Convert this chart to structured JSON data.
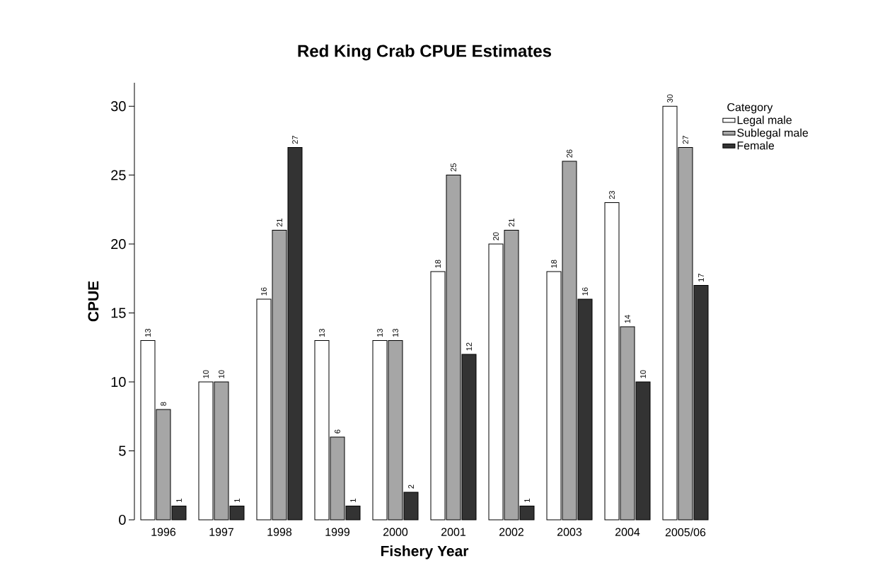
{
  "chart_data": {
    "type": "bar",
    "title": "Red King Crab CPUE Estimates",
    "xlabel": "Fishery Year",
    "ylabel": "CPUE",
    "legend_title": "Category",
    "categories": [
      "1996",
      "1997",
      "1998",
      "1999",
      "2000",
      "2001",
      "2002",
      "2003",
      "2004",
      "2005/06"
    ],
    "series": [
      {
        "name": "Legal male",
        "color": "#ffffff",
        "values": [
          13,
          10,
          16,
          13,
          13,
          18,
          20,
          18,
          23,
          30
        ]
      },
      {
        "name": "Sublegal male",
        "color": "#a6a6a6",
        "values": [
          8,
          10,
          21,
          6,
          13,
          25,
          21,
          26,
          14,
          27
        ]
      },
      {
        "name": "Female",
        "color": "#333333",
        "values": [
          1,
          1,
          27,
          1,
          2,
          12,
          1,
          16,
          10,
          17
        ]
      }
    ],
    "ylim": [
      0,
      31.7
    ],
    "yticks": [
      0,
      5,
      10,
      15,
      20,
      25,
      30
    ],
    "data_labels": true,
    "legend": "top right",
    "grid": false
  }
}
